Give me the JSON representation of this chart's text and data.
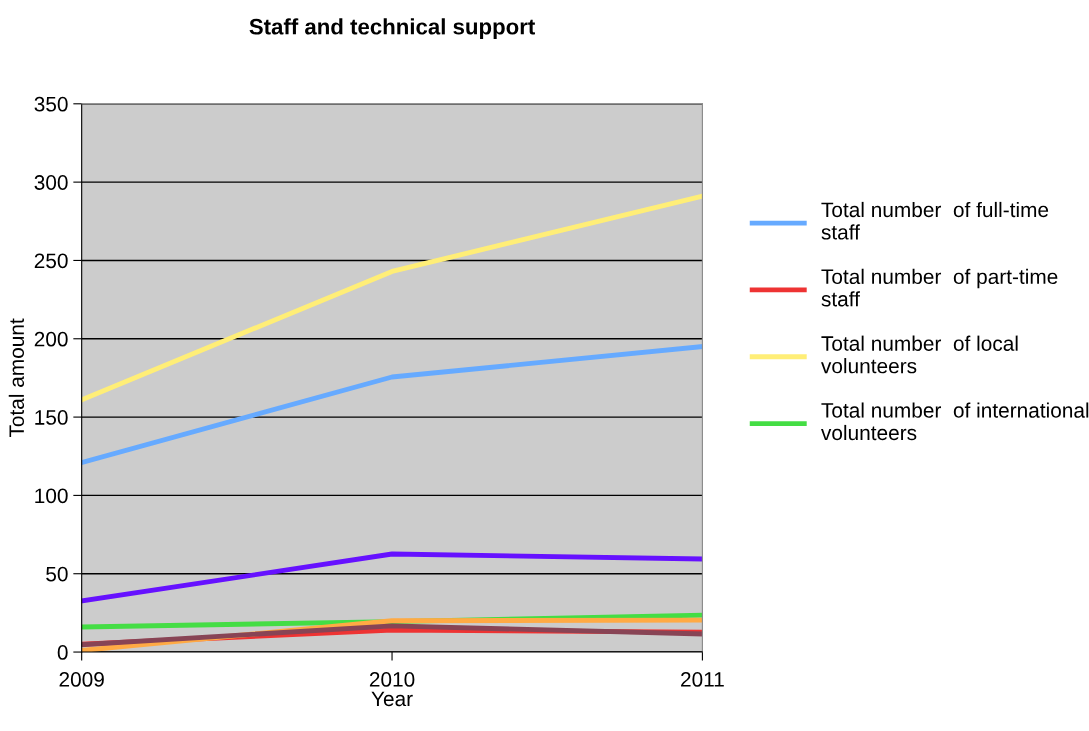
{
  "chart_data": {
    "type": "line",
    "title": "Staff and technical support",
    "xlabel": "Year",
    "ylabel": "Total amount",
    "x": [
      2009,
      2010,
      2011
    ],
    "xlim": [
      2009,
      2011
    ],
    "xticks": [
      2009,
      2010,
      2011
    ],
    "ylim": [
      0,
      350
    ],
    "yticks": [
      0,
      50,
      100,
      150,
      200,
      250,
      300,
      350
    ],
    "grid": "y",
    "legend": "right",
    "marker": "none",
    "line_style": "solid",
    "series": [
      {
        "name": "Total number  of full-time staff",
        "color": "#66aaff",
        "values": [
          121,
          175.6,
          195
        ]
      },
      {
        "name": "Total number  of part-time staff",
        "color": "#ee3333",
        "values": [
          5,
          14,
          12.7
        ]
      },
      {
        "name": "Total number  of local volunteers",
        "color": "#ffee77",
        "values": [
          161,
          243,
          291
        ]
      },
      {
        "name": "Total number  of international volunteers",
        "color": "#44dd44",
        "values": [
          16,
          19.4,
          23.6
        ]
      },
      {
        "color": "#6611ff",
        "values": [
          32.6,
          62.6,
          59.4
        ]
      },
      {
        "color": "#ffaa44",
        "values": [
          1,
          20,
          20.4
        ]
      },
      {
        "color": "#884455",
        "values": [
          4.7,
          16.7,
          11.5
        ]
      }
    ]
  }
}
